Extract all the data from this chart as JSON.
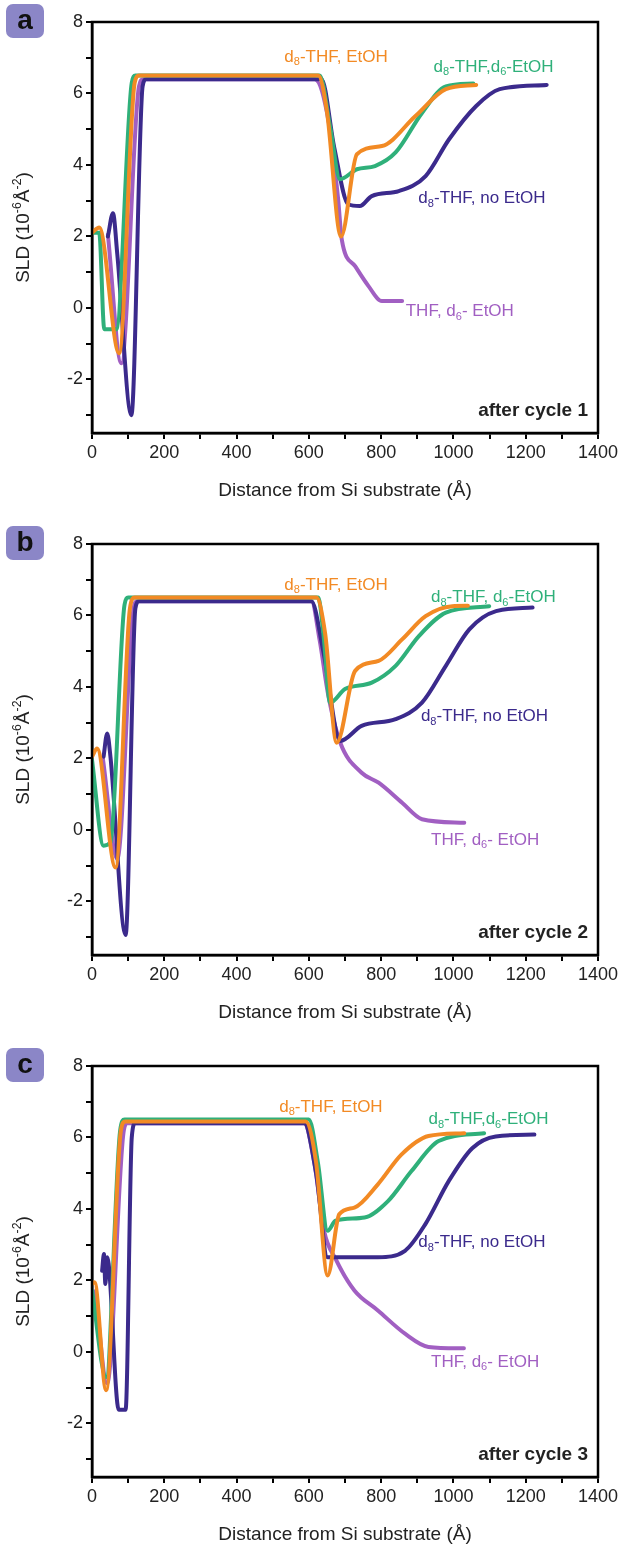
{
  "chart_data": [
    {
      "type": "line",
      "title": "a",
      "xlabel": "Distance from Si substrate (Å)",
      "ylabel": "SLD (10$^{-6}$Å$^{-2}$)",
      "annotations": [
        "after cycle 1"
      ],
      "xlim": [
        0,
        1400
      ],
      "xticks": [
        0,
        {
          "value": 100,
          "label": null
        },
        200,
        {
          "value": 300,
          "label": null
        },
        400,
        {
          "value": 500,
          "label": null
        },
        600,
        {
          "value": 700,
          "label": null
        },
        800,
        {
          "value": 900,
          "label": null
        },
        1000,
        {
          "value": 1100,
          "label": null
        },
        1200,
        {
          "value": 1300,
          "label": null
        },
        1400
      ],
      "ylim": [
        -3.5,
        8
      ],
      "yticks": [
        {
          "value": -3,
          "label": null
        },
        -2,
        {
          "value": -1,
          "label": null
        },
        0,
        {
          "value": 1,
          "label": null
        },
        2,
        {
          "value": 3,
          "label": null
        },
        4,
        {
          "value": 5,
          "label": null
        },
        6,
        {
          "value": 7,
          "label": null
        },
        8
      ],
      "grid": false,
      "legend": false,
      "marker": "none",
      "line_style": "solid",
      "series": [
        {
          "name": "d$_{8}$-THF, EtOH",
          "color": "#f28a24",
          "x": [
            0,
            20,
            75,
            118,
            130,
            626,
            650,
            689,
            733,
            802,
            895,
            979,
            1063
          ],
          "values": [
            2.1,
            2.25,
            -1.27,
            6.3,
            6.5,
            6.5,
            5.5,
            2.0,
            4.3,
            4.53,
            5.37,
            6.12,
            6.24
          ]
        },
        {
          "name": "d$_{8}$-THF,d$_{6}$-EtOH",
          "color": "#2fb07a",
          "x": [
            0,
            20,
            34,
            67,
            110,
            120,
            630,
            660,
            686,
            733,
            783,
            840,
            914,
            979,
            1055
          ],
          "values": [
            2.1,
            2.1,
            -0.6,
            -0.6,
            6.3,
            6.5,
            6.5,
            5.0,
            3.6,
            3.88,
            3.97,
            4.35,
            5.47,
            6.2,
            6.28
          ]
        },
        {
          "name": "d$_{8}$-THF, no EtOH",
          "color": "#3b2a8c",
          "x": [
            44,
            58,
            70,
            109,
            140,
            150,
            635,
            670,
            709,
            741,
            774,
            849,
            923,
            988,
            1063,
            1128,
            1258
          ],
          "values": [
            2.0,
            2.65,
            1.5,
            -3.0,
            6.2,
            6.4,
            6.4,
            4.5,
            2.9,
            2.85,
            3.13,
            3.27,
            3.69,
            4.72,
            5.65,
            6.12,
            6.24
          ]
        },
        {
          "name": "THF, d$_{6}$- EtOH",
          "color": "#a15fc2",
          "x": [
            44,
            81,
            130,
            142,
            616,
            655,
            681,
            691,
            728,
            765,
            802,
            858
          ],
          "values": [
            2.05,
            -1.55,
            6.2,
            6.4,
            6.4,
            5.2,
            3.04,
            1.92,
            1.17,
            0.61,
            0.19,
            0.19
          ]
        }
      ]
    },
    {
      "type": "line",
      "title": "b",
      "xlabel": "Distance from Si substrate (Å)",
      "ylabel": "SLD (10$^{-6}$Å$^{-2}$)",
      "annotations": [
        "after cycle 2"
      ],
      "xlim": [
        0,
        1400
      ],
      "xticks": [
        0,
        {
          "value": 100,
          "label": null
        },
        200,
        {
          "value": 300,
          "label": null
        },
        400,
        {
          "value": 500,
          "label": null
        },
        600,
        {
          "value": 700,
          "label": null
        },
        800,
        {
          "value": 900,
          "label": null
        },
        1000,
        {
          "value": 1100,
          "label": null
        },
        1200,
        {
          "value": 1300,
          "label": null
        },
        1400
      ],
      "ylim": [
        -3.5,
        8
      ],
      "yticks": [
        {
          "value": -3,
          "label": null
        },
        -2,
        {
          "value": -1,
          "label": null
        },
        0,
        {
          "value": 1,
          "label": null
        },
        2,
        {
          "value": 3,
          "label": null
        },
        4,
        {
          "value": 5,
          "label": null
        },
        6,
        {
          "value": 7,
          "label": null
        },
        8
      ],
      "grid": false,
      "legend": false,
      "marker": "none",
      "line_style": "solid",
      "series": [
        {
          "name": "d$_{8}$-THF, EtOH",
          "color": "#f28a24",
          "x": [
            0,
            14,
            65,
            105,
            118,
            621,
            645,
            677,
            728,
            793,
            858,
            923,
            997,
            1040
          ],
          "values": [
            2.05,
            2.28,
            -1.05,
            6.2,
            6.5,
            6.5,
            5.5,
            2.44,
            4.45,
            4.73,
            5.33,
            5.98,
            6.26,
            6.27
          ]
        },
        {
          "name": "d$_{8}$-THF, d$_{6}$-EtOH",
          "color": "#2fb07a",
          "x": [
            0,
            32,
            51,
            90,
            100,
            626,
            640,
            659,
            700,
            774,
            840,
            905,
            979,
            1099
          ],
          "values": [
            1.96,
            -0.44,
            -0.35,
            6.3,
            6.5,
            6.5,
            5.5,
            3.56,
            3.94,
            4.12,
            4.59,
            5.43,
            6.08,
            6.26
          ]
        },
        {
          "name": "d$_{8}$-THF, no EtOH",
          "color": "#3b2a8c",
          "x": [
            32,
            42,
            51,
            93,
            120,
            130,
            607,
            640,
            687,
            746,
            840,
            913,
            979,
            1044,
            1118,
            1219
          ],
          "values": [
            2.05,
            2.7,
            2.05,
            -2.94,
            6.2,
            6.4,
            6.4,
            5.0,
            2.49,
            2.91,
            3.1,
            3.56,
            4.59,
            5.61,
            6.12,
            6.22
          ]
        },
        {
          "name": "THF, d$_{6}$- EtOH",
          "color": "#a15fc2",
          "x": [
            30,
            70,
            115,
            125,
            607,
            630,
            654,
            687,
            746,
            793,
            858,
            913,
            1030
          ],
          "values": [
            2.0,
            -0.8,
            6.2,
            6.4,
            6.4,
            5.3,
            3.75,
            2.44,
            1.6,
            1.32,
            0.76,
            0.3,
            0.2
          ]
        }
      ]
    },
    {
      "type": "line",
      "title": "c",
      "xlabel": "Distance from Si substrate (Å)",
      "ylabel": "SLD (10$^{-6}$Å$^{-2}$)",
      "annotations": [
        "after cycle 3"
      ],
      "xlim": [
        0,
        1400
      ],
      "xticks": [
        0,
        {
          "value": 100,
          "label": null
        },
        200,
        {
          "value": 300,
          "label": null
        },
        400,
        {
          "value": 500,
          "label": null
        },
        600,
        {
          "value": 700,
          "label": null
        },
        800,
        {
          "value": 900,
          "label": null
        },
        1000,
        {
          "value": 1100,
          "label": null
        },
        1200,
        {
          "value": 1300,
          "label": null
        },
        1400
      ],
      "ylim": [
        -3.5,
        8
      ],
      "yticks": [
        {
          "value": -3,
          "label": null
        },
        -2,
        {
          "value": -1,
          "label": null
        },
        0,
        {
          "value": 1,
          "label": null
        },
        2,
        {
          "value": 3,
          "label": null
        },
        4,
        {
          "value": 5,
          "label": null
        },
        6,
        {
          "value": 7,
          "label": null
        },
        8
      ],
      "grid": false,
      "legend": false,
      "marker": "none",
      "line_style": "solid",
      "series": [
        {
          "name": "d$_{8}$-THF, EtOH",
          "color": "#f28a24",
          "x": [
            0,
            7,
            39,
            80,
            92,
            591,
            620,
            652,
            684,
            726,
            791,
            856,
            931,
            1030
          ],
          "values": [
            1.9,
            1.95,
            -1.07,
            6.2,
            6.45,
            6.45,
            5.3,
            2.14,
            3.85,
            4.04,
            4.69,
            5.52,
            6.04,
            6.12
          ]
        },
        {
          "name": "d$_{8}$-THF,d$_{6}$-EtOH",
          "color": "#2fb07a",
          "x": [
            0,
            39,
            78,
            90,
            600,
            625,
            652,
            674,
            754,
            819,
            884,
            959,
            1085
          ],
          "values": [
            1.72,
            -0.7,
            6.2,
            6.5,
            6.5,
            5.3,
            3.39,
            3.67,
            3.76,
            4.22,
            5.06,
            5.9,
            6.12
          ]
        },
        {
          "name": "d$_{8}$-THF, no EtOH",
          "color": "#3b2a8c",
          "x": [
            28,
            33,
            37,
            42,
            74,
            93,
            110,
            120,
            587,
            620,
            652,
            684,
            791,
            866,
            922,
            987,
            1052,
            1117,
            1224
          ],
          "values": [
            2.27,
            2.74,
            1.9,
            2.65,
            -1.62,
            -1.62,
            6.0,
            6.4,
            6.4,
            5.0,
            2.65,
            2.65,
            2.65,
            2.83,
            3.57,
            4.78,
            5.7,
            6.03,
            6.08
          ]
        },
        {
          "name": "THF, d$_{6}$- EtOH",
          "color": "#a15fc2",
          "x": [
            9,
            42,
            88,
            98,
            587,
            615,
            642,
            674,
            726,
            791,
            866,
            931,
            1029
          ],
          "values": [
            1.7,
            -0.88,
            6.2,
            6.4,
            6.4,
            5.3,
            3.39,
            2.6,
            1.72,
            1.16,
            0.51,
            0.14,
            0.1
          ]
        }
      ]
    }
  ]
}
